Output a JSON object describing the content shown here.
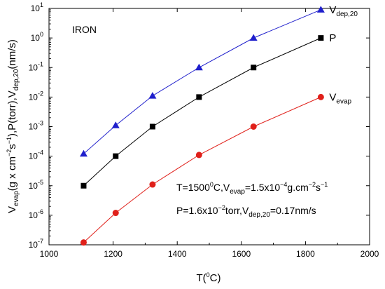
{
  "chart_data": {
    "type": "line",
    "title": "",
    "xlabel": {
      "main": "T(",
      "sup": "0",
      "tail": "C)"
    },
    "ylabel": {
      "p1": "V",
      "s1": "evap",
      "p2": "(g x cm",
      "s2": "−2",
      "p3": "s",
      "s3": "−1",
      "p4": "),P(torr),V",
      "s4": "dep,20",
      "p5": "(nm/s)"
    },
    "xlim": [
      1000,
      2000
    ],
    "ylim_log10": [
      -7,
      1
    ],
    "yscale": "log",
    "grid": false,
    "x_ticks": [
      1000,
      1200,
      1400,
      1600,
      1800,
      2000
    ],
    "y_tick_exponents": [
      -7,
      -6,
      -5,
      -4,
      -3,
      -2,
      -1,
      0,
      1
    ],
    "series": [
      {
        "name": "Vdep,20",
        "label_main": "V",
        "label_sub": "dep,20",
        "color": "#1f1fcc",
        "marker": "triangle",
        "x": [
          1108,
          1208,
          1323,
          1468,
          1638,
          1848
        ],
        "y": [
          0.00012,
          0.0011,
          0.011,
          0.1,
          1,
          9
        ]
      },
      {
        "name": "P",
        "label_main": "P",
        "label_sub": "",
        "color": "#000000",
        "marker": "square",
        "x": [
          1108,
          1208,
          1323,
          1468,
          1638,
          1848
        ],
        "y": [
          1e-05,
          0.0001,
          0.001,
          0.01,
          0.1,
          1
        ]
      },
      {
        "name": "Vevap",
        "label_main": "V",
        "label_sub": "evap",
        "color": "#e0201a",
        "marker": "circle",
        "x": [
          1108,
          1208,
          1323,
          1468,
          1638,
          1848
        ],
        "y": [
          1.2e-07,
          1.2e-06,
          1.1e-05,
          0.00011,
          0.001,
          0.01
        ]
      }
    ],
    "annotations": {
      "material": "IRON",
      "line1": {
        "a": "T=1500",
        "a_sup": "0",
        "b": "C,V",
        "b_sub": "evap",
        "c": "=1.5x10",
        "c_sup": "−4",
        "d": "g.cm",
        "d_sup": "−2",
        "e": "s",
        "e_sup": "−1"
      },
      "line2": {
        "a": "P=1.6x10",
        "a_sup": "−2",
        "b": "torr,V",
        "b_sub": "dep,20",
        "c": "=0.17nm/s"
      }
    }
  }
}
